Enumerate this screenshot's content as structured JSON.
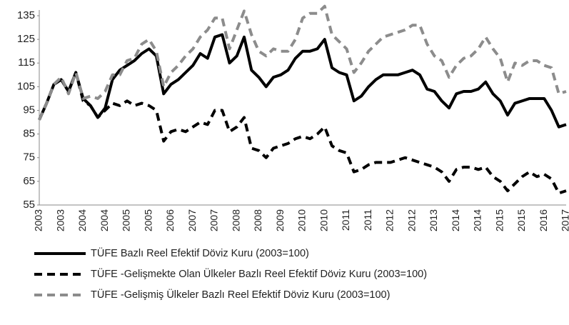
{
  "chart_data": {
    "type": "line",
    "ylim": [
      55,
      135
    ],
    "yticks": [
      55,
      65,
      75,
      85,
      95,
      105,
      115,
      125,
      135
    ],
    "grid": false,
    "legend": "bottom",
    "categories": [
      "2003",
      null,
      null,
      "2003",
      null,
      null,
      "2004",
      null,
      null,
      "2004",
      null,
      null,
      "2005",
      null,
      null,
      "2005",
      null,
      null,
      "2006",
      null,
      null,
      "2007",
      null,
      null,
      "2007",
      null,
      null,
      "2008",
      null,
      null,
      "2008",
      null,
      null,
      "2009",
      null,
      null,
      "2010",
      null,
      null,
      "2010",
      null,
      null,
      "2011",
      null,
      null,
      "2011",
      null,
      null,
      "2012",
      null,
      null,
      "2012",
      null,
      null,
      "2013",
      null,
      null,
      "2014",
      null,
      null,
      "2014",
      null,
      null,
      "2015",
      null,
      null,
      "2015",
      null,
      null,
      "2016",
      null,
      null,
      "2017"
    ],
    "series": [
      {
        "name": "TÜFE  Bazlı Reel Efektif Döviz Kuru (2003=100)",
        "color": "#000000",
        "style": "solid",
        "values": [
          91,
          98,
          106,
          108,
          103,
          111,
          100,
          97,
          92,
          96,
          108,
          112,
          114,
          116,
          119,
          121,
          118,
          102,
          106,
          108,
          111,
          114,
          119,
          117,
          126,
          127,
          115,
          118,
          126,
          112,
          109,
          105,
          109,
          110,
          112,
          117,
          120,
          120,
          121,
          125,
          113,
          111,
          110,
          99,
          101,
          105,
          108,
          110,
          110,
          110,
          111,
          112,
          110,
          104,
          103,
          99,
          96,
          102,
          103,
          103,
          104,
          107,
          102,
          99,
          93,
          98,
          99,
          100,
          100,
          100,
          95,
          88,
          89
        ]
      },
      {
        "name": "TÜFE -Gelişmekte Olan Ülkeler Bazlı Reel Efektif Döviz Kuru (2003=100)",
        "color": "#000000",
        "style": "dashed",
        "values": [
          91,
          98,
          106,
          108,
          103,
          111,
          99,
          97,
          92,
          95,
          98,
          97,
          99,
          97,
          98,
          97,
          95,
          82,
          86,
          87,
          86,
          88,
          90,
          89,
          95,
          95,
          86,
          88,
          92,
          79,
          78,
          75,
          79,
          80,
          81,
          83,
          84,
          83,
          85,
          88,
          80,
          78,
          77,
          69,
          70,
          72,
          73,
          73,
          73,
          74,
          75,
          74,
          73,
          72,
          71,
          69,
          65,
          70,
          71,
          71,
          70,
          71,
          67,
          65,
          61,
          64,
          67,
          69,
          67,
          68,
          66,
          60,
          61
        ]
      },
      {
        "name": "TÜFE -Gelişmiş Ülkeler Bazlı Reel Efektif Döviz Kuru (2003=100)",
        "color": "#8c8c8c",
        "style": "dashed",
        "values": [
          91,
          98,
          106,
          109,
          102,
          111,
          100,
          101,
          100,
          103,
          110,
          110,
          116,
          117,
          123,
          125,
          120,
          105,
          111,
          114,
          118,
          121,
          126,
          129,
          134,
          134,
          121,
          129,
          137,
          127,
          120,
          118,
          121,
          120,
          120,
          125,
          134,
          136,
          136,
          139,
          127,
          124,
          121,
          111,
          115,
          120,
          123,
          126,
          127,
          128,
          129,
          131,
          131,
          123,
          118,
          116,
          109,
          114,
          117,
          118,
          121,
          126,
          121,
          117,
          107,
          115,
          114,
          116,
          116,
          114,
          113,
          102,
          103
        ]
      }
    ]
  }
}
